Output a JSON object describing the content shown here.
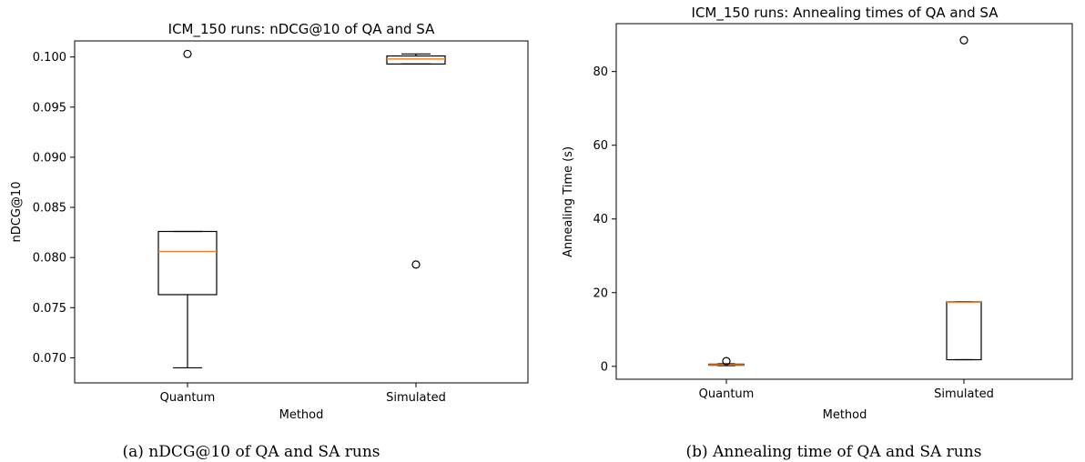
{
  "chart_data": [
    {
      "type": "box",
      "title": "ICM_150 runs: nDCG@10 of QA and SA",
      "xlabel": "Method",
      "ylabel": "nDCG@10",
      "caption": "(a) nDCG@10 of QA and SA runs",
      "ylim": [
        0.0675,
        0.1016
      ],
      "yticks": [
        0.07,
        0.075,
        0.08,
        0.085,
        0.09,
        0.095,
        0.1
      ],
      "ytick_labels": [
        "0.070",
        "0.075",
        "0.080",
        "0.085",
        "0.090",
        "0.095",
        "0.100"
      ],
      "categories": [
        "Quantum",
        "Simulated"
      ],
      "boxes": [
        {
          "name": "Quantum",
          "whislo": 0.069,
          "q1": 0.0763,
          "med": 0.0806,
          "q3": 0.0826,
          "whishi": 0.0826,
          "fliers": [
            0.1003
          ]
        },
        {
          "name": "Simulated",
          "whislo": 0.0993,
          "q1": 0.0993,
          "med": 0.0998,
          "q3": 0.1001,
          "whishi": 0.1003,
          "fliers": [
            0.0793
          ]
        }
      ]
    },
    {
      "type": "box",
      "title": "ICM_150 runs: Annealing times of QA and SA",
      "xlabel": "Method",
      "ylabel": "Annealing Time (s)",
      "caption": "(b) Annealing time of QA and SA runs",
      "ylim": [
        -3.5,
        93
      ],
      "yticks": [
        0,
        20,
        40,
        60,
        80
      ],
      "ytick_labels": [
        "0",
        "20",
        "40",
        "60",
        "80"
      ],
      "categories": [
        "Quantum",
        "Simulated"
      ],
      "boxes": [
        {
          "name": "Quantum",
          "whislo": 0.2,
          "q1": 0.3,
          "med": 0.45,
          "q3": 0.6,
          "whishi": 0.7,
          "fliers": [
            1.4
          ]
        },
        {
          "name": "Simulated",
          "whislo": 1.8,
          "q1": 1.8,
          "med": 17.4,
          "q3": 17.5,
          "whishi": 17.5,
          "fliers": [
            88.5
          ]
        }
      ]
    }
  ],
  "colors": {
    "median": "#ff7f0e",
    "box": "#000000",
    "flier": "#000000"
  }
}
